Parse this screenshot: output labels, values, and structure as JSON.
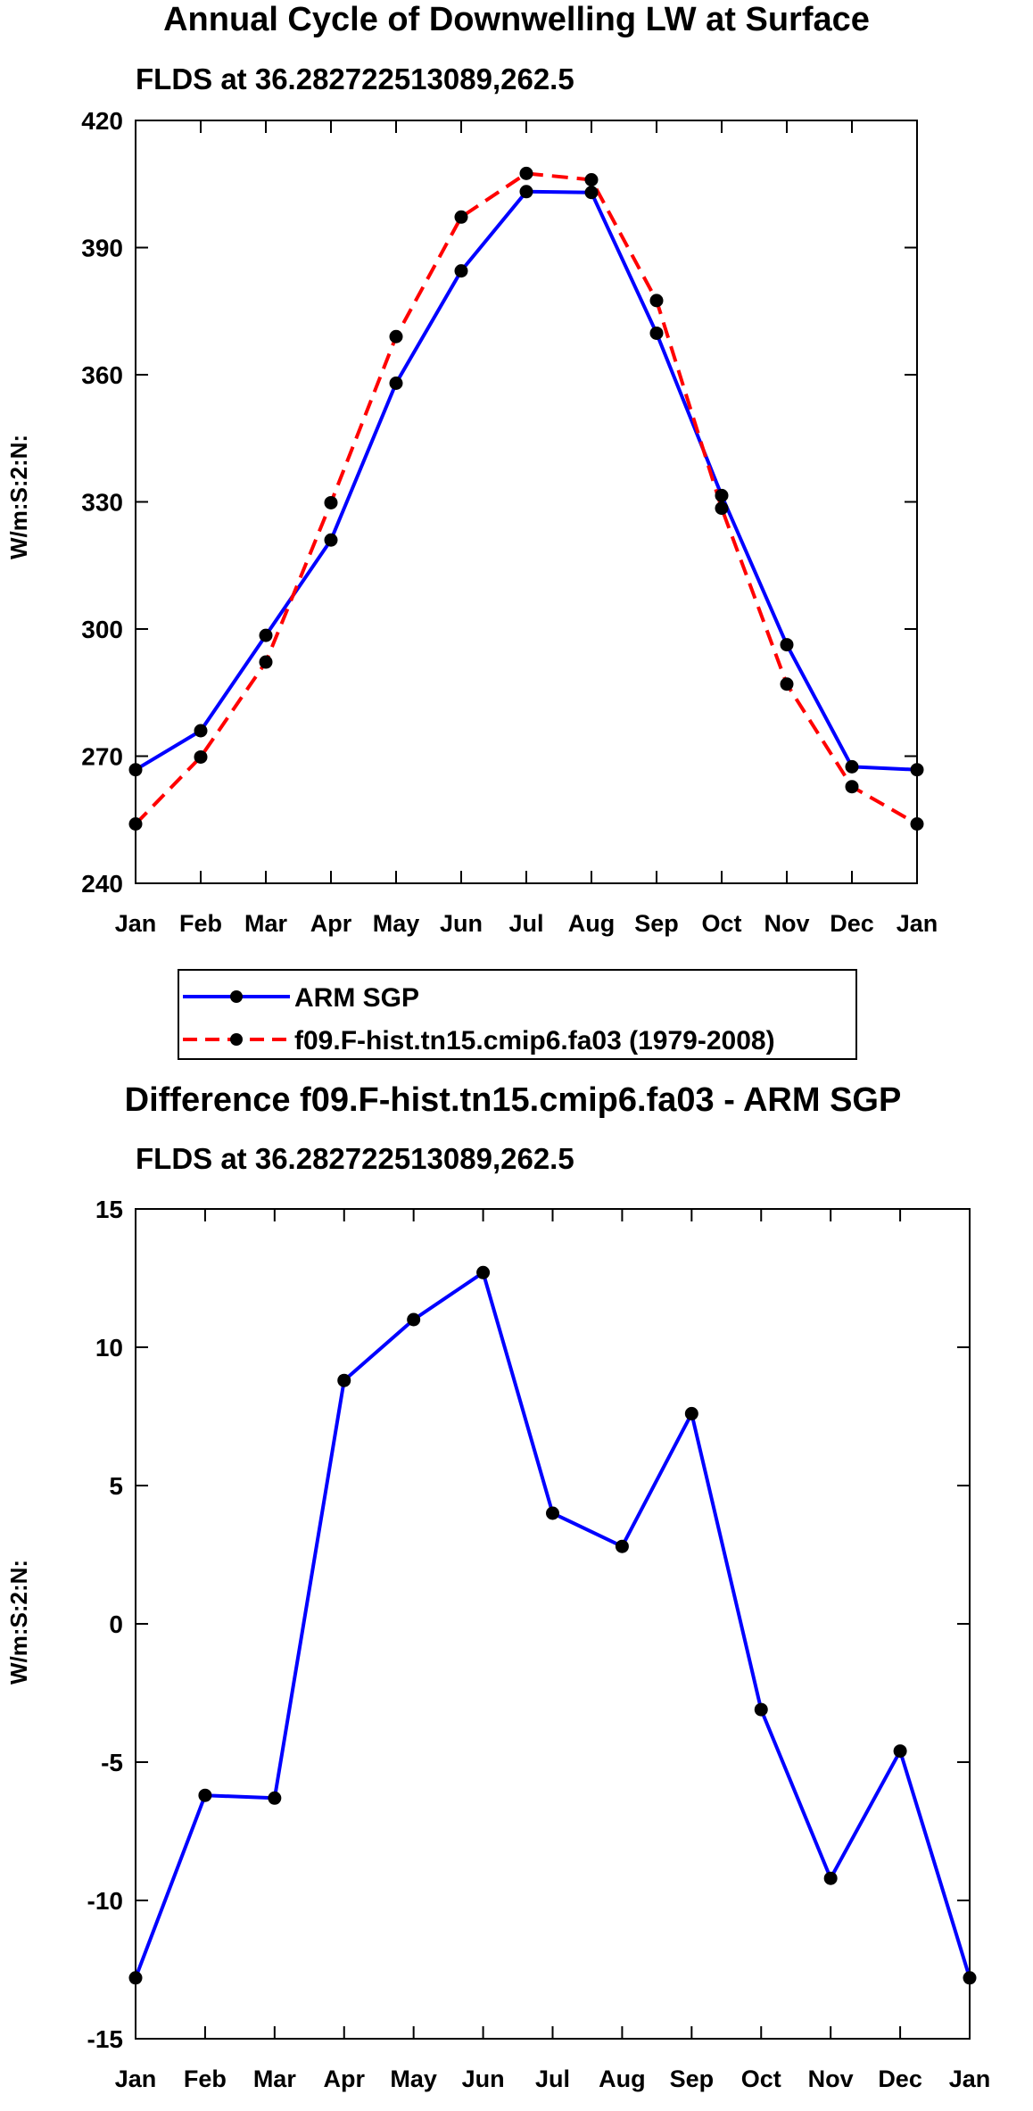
{
  "colors": {
    "arm": "#0000ff",
    "model": "#ff0000",
    "marker": "#000000"
  },
  "chart_data": [
    {
      "type": "line",
      "title": "Annual Cycle of Downwelling LW at Surface",
      "subtitle": "FLDS at 36.282722513089,262.5",
      "ylabel": "W/m:S:2:N:",
      "ylim": [
        240,
        420
      ],
      "yticks": [
        "420",
        "390",
        "360",
        "330",
        "300",
        "270",
        "240"
      ],
      "ytick_values": [
        420,
        390,
        360,
        330,
        300,
        270,
        240
      ],
      "categories": [
        "Jan",
        "Feb",
        "Mar",
        "Apr",
        "May",
        "Jun",
        "Jul",
        "Aug",
        "Sep",
        "Oct",
        "Nov",
        "Dec",
        "Jan"
      ],
      "series": [
        {
          "name": "ARM SGP",
          "style": "solid",
          "values": [
            266.8,
            276.0,
            298.5,
            321.0,
            358.0,
            384.5,
            403.2,
            403.0,
            369.8,
            331.5,
            296.3,
            267.5,
            266.8
          ]
        },
        {
          "name": "f09.F-hist.tn15.cmip6.fa03 (1979-2008)",
          "style": "dashed",
          "values": [
            254.0,
            269.8,
            292.2,
            329.8,
            369.0,
            397.2,
            407.5,
            406.0,
            377.5,
            328.5,
            287.0,
            262.8,
            254.0
          ]
        }
      ],
      "legend": [
        "ARM SGP",
        "f09.F-hist.tn15.cmip6.fa03 (1979-2008)"
      ]
    },
    {
      "type": "line",
      "title": "Difference f09.F-hist.tn15.cmip6.fa03 - ARM SGP",
      "subtitle": "FLDS at 36.282722513089,262.5",
      "ylabel": "W/m:S:2:N:",
      "ylim": [
        -15,
        15
      ],
      "yticks": [
        "15",
        "10",
        "5",
        "0",
        "-5",
        "-10",
        "-15"
      ],
      "ytick_values": [
        15,
        10,
        5,
        0,
        -5,
        -10,
        -15
      ],
      "categories": [
        "Jan",
        "Feb",
        "Mar",
        "Apr",
        "May",
        "Jun",
        "Jul",
        "Aug",
        "Sep",
        "Oct",
        "Nov",
        "Dec",
        "Jan"
      ],
      "series": [
        {
          "name": "Difference",
          "style": "solid",
          "values": [
            -12.8,
            -6.2,
            -6.3,
            8.8,
            11.0,
            12.7,
            4.0,
            2.8,
            7.6,
            -3.1,
            -9.2,
            -4.6,
            -12.8
          ]
        }
      ]
    }
  ]
}
